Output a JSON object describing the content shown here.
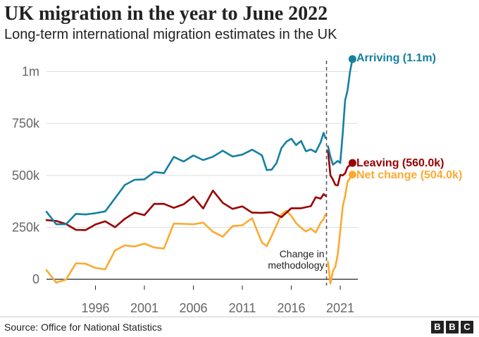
{
  "header": {
    "title": "UK migration in the year to June 2022",
    "subtitle": "Long-term international migration estimates in the UK"
  },
  "footer": {
    "source": "Source: Office for National Statistics",
    "logo": [
      "B",
      "B",
      "C"
    ]
  },
  "chart_data": {
    "type": "line",
    "title": "UK migration in the year to June 2022",
    "subtitle": "Long-term international migration estimates in the UK",
    "xlabel": "",
    "ylabel": "",
    "xlim": [
      1991,
      2022.8
    ],
    "ylim": [
      -30000,
      1100000
    ],
    "x_ticks": [
      1996,
      2001,
      2006,
      2011,
      2016,
      2021
    ],
    "y_ticks": [
      {
        "value": 0,
        "label": "0"
      },
      {
        "value": 250000,
        "label": "250k"
      },
      {
        "value": 500000,
        "label": "500k"
      },
      {
        "value": 750000,
        "label": "750k"
      },
      {
        "value": 1000000,
        "label": "1m"
      }
    ],
    "grid": true,
    "legend": "direct labels at line ends",
    "colors": {
      "arriving": "#1380a1",
      "leaving": "#990000",
      "net": "#fbaa30",
      "grid": "#dddddd",
      "axis": "#222222",
      "marker_line": "#555555"
    },
    "methodology_break": {
      "x": 2019.6,
      "label": [
        "Change in",
        "methodology"
      ]
    },
    "end_labels": [
      {
        "series": "Arriving",
        "text": "Arriving (1.1m)"
      },
      {
        "series": "Leaving",
        "text": "Leaving (560.0k)"
      },
      {
        "series": "Net change",
        "text": "Net change (504.0k)"
      }
    ],
    "series": [
      {
        "name": "Arriving",
        "color": "#1380a1",
        "segments": [
          [
            [
              1991,
              325000
            ],
            [
              1992,
              265000
            ],
            [
              1993,
              265000
            ],
            [
              1994,
              315000
            ],
            [
              1995,
              312000
            ],
            [
              1996,
              318000
            ],
            [
              1997,
              327000
            ],
            [
              1998,
              390000
            ],
            [
              1999,
              454000
            ],
            [
              2000,
              479000
            ],
            [
              2001,
              481000
            ],
            [
              2002,
              516000
            ],
            [
              2003,
              511000
            ],
            [
              2004,
              589000
            ],
            [
              2005,
              567000
            ],
            [
              2006,
              596000
            ],
            [
              2007,
              574000
            ],
            [
              2008,
              590000
            ],
            [
              2009,
              619000
            ],
            [
              2010,
              591000
            ],
            [
              2011,
              600000
            ],
            [
              2012,
              624000
            ],
            [
              2013,
              597000
            ],
            [
              2013.5,
              526000
            ],
            [
              2014,
              528000
            ],
            [
              2014.5,
              560000
            ],
            [
              2015,
              632000
            ],
            [
              2015.5,
              662000
            ],
            [
              2016,
              677000
            ],
            [
              2016.5,
              646000
            ],
            [
              2017,
              666000
            ],
            [
              2017.5,
              616000
            ],
            [
              2018,
              625000
            ],
            [
              2018.5,
              612000
            ],
            [
              2019,
              660000
            ],
            [
              2019.3,
              705000
            ],
            [
              2019.5,
              680000
            ]
          ],
          [
            [
              2019.75,
              640000
            ],
            [
              2020,
              590000
            ],
            [
              2020.25,
              552000
            ],
            [
              2020.5,
              560000
            ],
            [
              2020.75,
              570000
            ],
            [
              2021,
              560000
            ],
            [
              2021.25,
              700000
            ],
            [
              2021.5,
              860000
            ],
            [
              2021.75,
              910000
            ],
            [
              2022,
              1000000
            ],
            [
              2022.25,
              1060000
            ]
          ]
        ]
      },
      {
        "name": "Leaving",
        "color": "#990000",
        "segments": [
          [
            [
              1991,
              285000
            ],
            [
              1992,
              281000
            ],
            [
              1993,
              266000
            ],
            [
              1994,
              238000
            ],
            [
              1995,
              237000
            ],
            [
              1996,
              264000
            ],
            [
              1997,
              279000
            ],
            [
              1998,
              251000
            ],
            [
              1999,
              291000
            ],
            [
              2000,
              321000
            ],
            [
              2001,
              309000
            ],
            [
              2002,
              363000
            ],
            [
              2003,
              363000
            ],
            [
              2004,
              344000
            ],
            [
              2005,
              361000
            ],
            [
              2006,
              398000
            ],
            [
              2007,
              341000
            ],
            [
              2008,
              427000
            ],
            [
              2009,
              368000
            ],
            [
              2010,
              339000
            ],
            [
              2011,
              351000
            ],
            [
              2012,
              321000
            ],
            [
              2013,
              320000
            ],
            [
              2014,
              323000
            ],
            [
              2015,
              299000
            ],
            [
              2016,
              342000
            ],
            [
              2017,
              342000
            ],
            [
              2018,
              352000
            ],
            [
              2018.5,
              395000
            ],
            [
              2019,
              388000
            ],
            [
              2019.3,
              410000
            ],
            [
              2019.5,
              402000
            ]
          ],
          [
            [
              2019.75,
              620000
            ],
            [
              2020,
              500000
            ],
            [
              2020.25,
              480000
            ],
            [
              2020.5,
              455000
            ],
            [
              2020.75,
              452000
            ],
            [
              2021,
              502000
            ],
            [
              2021.25,
              500000
            ],
            [
              2021.5,
              510000
            ],
            [
              2021.75,
              540000
            ],
            [
              2022.25,
              560000
            ]
          ]
        ]
      },
      {
        "name": "Net change",
        "color": "#fbaa30",
        "segments": [
          [
            [
              1991,
              44000
            ],
            [
              1992,
              -16000
            ],
            [
              1993,
              -1000
            ],
            [
              1994,
              77000
            ],
            [
              1995,
              75000
            ],
            [
              1996,
              55000
            ],
            [
              1997,
              48000
            ],
            [
              1998,
              139000
            ],
            [
              1999,
              163000
            ],
            [
              2000,
              158000
            ],
            [
              2001,
              172000
            ],
            [
              2002,
              153000
            ],
            [
              2003,
              148000
            ],
            [
              2004,
              268000
            ],
            [
              2005,
              267000
            ],
            [
              2006,
              265000
            ],
            [
              2007,
              273000
            ],
            [
              2008,
              229000
            ],
            [
              2009,
              205000
            ],
            [
              2010,
              256000
            ],
            [
              2011,
              260000
            ],
            [
              2012,
              294000
            ],
            [
              2013,
              177000
            ],
            [
              2013.5,
              160000
            ],
            [
              2014,
              209000
            ],
            [
              2014.5,
              260000
            ],
            [
              2015,
              313000
            ],
            [
              2015.5,
              330000
            ],
            [
              2016,
              305000
            ],
            [
              2016.5,
              270000
            ],
            [
              2017,
              248000
            ],
            [
              2017.5,
              230000
            ],
            [
              2018,
              244000
            ],
            [
              2018.5,
              225000
            ],
            [
              2019,
              272000
            ],
            [
              2019.3,
              290000
            ],
            [
              2019.5,
              313000
            ]
          ],
          [
            [
              2019.75,
              84000
            ],
            [
              2020,
              -20000
            ],
            [
              2020.25,
              40000
            ],
            [
              2020.5,
              60000
            ],
            [
              2020.75,
              120000
            ],
            [
              2021,
              230000
            ],
            [
              2021.25,
              350000
            ],
            [
              2021.5,
              400000
            ],
            [
              2021.75,
              470000
            ],
            [
              2022.25,
              504000
            ]
          ]
        ]
      }
    ]
  }
}
